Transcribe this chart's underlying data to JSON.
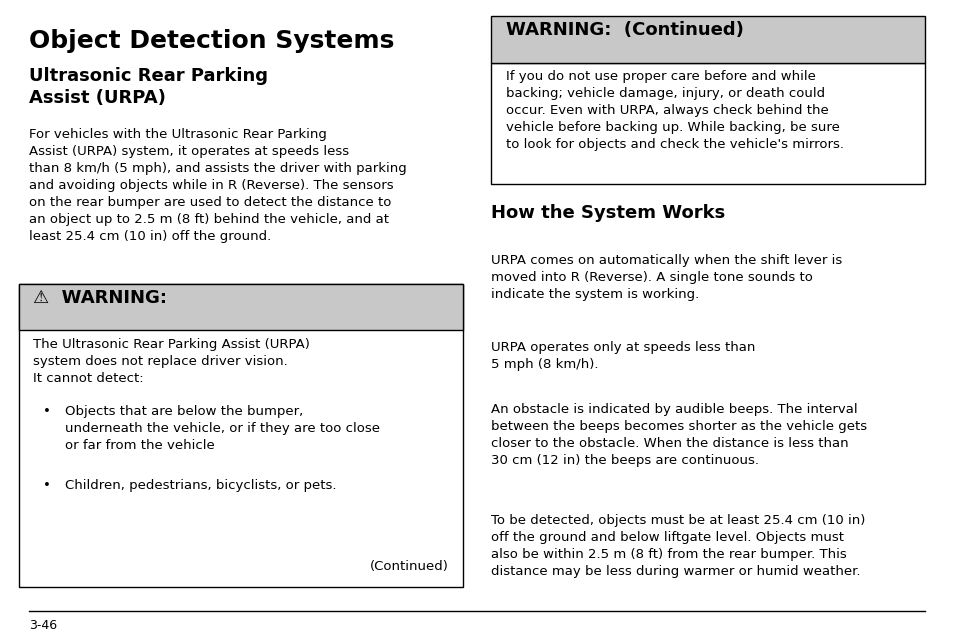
{
  "bg_color": "#ffffff",
  "page_num": "3-46",
  "title_main": "Object Detection Systems",
  "title_sub": "Ultrasonic Rear Parking\nAssist (URPA)",
  "body_left": "For vehicles with the Ultrasonic Rear Parking\nAssist (URPA) system, it operates at speeds less\nthan 8 km/h (5 mph), and assists the driver with parking\nand avoiding objects while in R (Reverse). The sensors\non the rear bumper are used to detect the distance to\nan object up to 2.5 m (8 ft) behind the vehicle, and at\nleast 25.4 cm (10 in) off the ground.",
  "warning_header": "⚠  WARNING:",
  "warning_body": "The Ultrasonic Rear Parking Assist (URPA)\nsystem does not replace driver vision.\nIt cannot detect:",
  "warning_bullet1": "Objects that are below the bumper,\nunderneath the vehicle, or if they are too close\nor far from the vehicle",
  "warning_bullet2": "Children, pedestrians, bicyclists, or pets.",
  "warning_continued": "(Continued)",
  "warning_continued_header": "WARNING:  (Continued)",
  "warning_continued_body": "If you do not use proper care before and while\nbacking; vehicle damage, injury, or death could\noccur. Even with URPA, always check behind the\nvehicle before backing up. While backing, be sure\nto look for objects and check the vehicle's mirrors.",
  "section_title_right": "How the System Works",
  "body_right1": "URPA comes on automatically when the shift lever is\nmoved into R (Reverse). A single tone sounds to\nindicate the system is working.",
  "body_right2": "URPA operates only at speeds less than\n5 mph (8 km/h).",
  "body_right3": "An obstacle is indicated by audible beeps. The interval\nbetween the beeps becomes shorter as the vehicle gets\ncloser to the obstacle. When the distance is less than\n30 cm (12 in) the beeps are continuous.",
  "body_right4": "To be detected, objects must be at least 25.4 cm (10 in)\noff the ground and below liftgate level. Objects must\nalso be within 2.5 m (8 ft) from the rear bumper. This\ndistance may be less during warmer or humid weather.",
  "gray_header_color": "#c8c8c8",
  "box_border_color": "#000000",
  "text_color": "#000000",
  "font_size_main_title": 18,
  "font_size_sub_title": 13,
  "font_size_body": 9.5,
  "font_size_warning_header": 13,
  "font_size_section": 13,
  "col_split": 0.495
}
